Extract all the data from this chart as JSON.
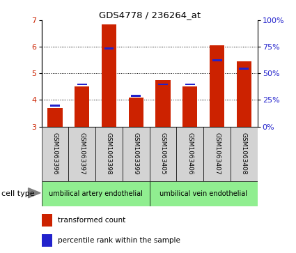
{
  "title": "GDS4778 / 236264_at",
  "samples": [
    "GSM1063396",
    "GSM1063397",
    "GSM1063398",
    "GSM1063399",
    "GSM1063405",
    "GSM1063406",
    "GSM1063407",
    "GSM1063408"
  ],
  "transformed_count": [
    3.7,
    4.5,
    6.85,
    4.1,
    4.75,
    4.5,
    6.05,
    5.45
  ],
  "percentile_rank": [
    3.75,
    4.55,
    5.9,
    4.12,
    4.55,
    4.55,
    5.45,
    5.15
  ],
  "ymin": 3,
  "ymax": 7,
  "y_left_ticks": [
    3,
    4,
    5,
    6,
    7
  ],
  "y_right_ticks": [
    0,
    25,
    50,
    75,
    100
  ],
  "bar_color": "#cc2200",
  "percentile_color": "#2222cc",
  "bar_width": 0.55,
  "cell_type_groups": [
    {
      "label": "umbilical artery endothelial",
      "indices": [
        0,
        1,
        2,
        3
      ],
      "color": "#90ee90"
    },
    {
      "label": "umbilical vein endothelial",
      "indices": [
        4,
        5,
        6,
        7
      ],
      "color": "#90ee90"
    }
  ],
  "legend_red_label": "transformed count",
  "legend_blue_label": "percentile rank within the sample",
  "cell_type_label": "cell type",
  "tick_label_area_color": "#d3d3d3"
}
